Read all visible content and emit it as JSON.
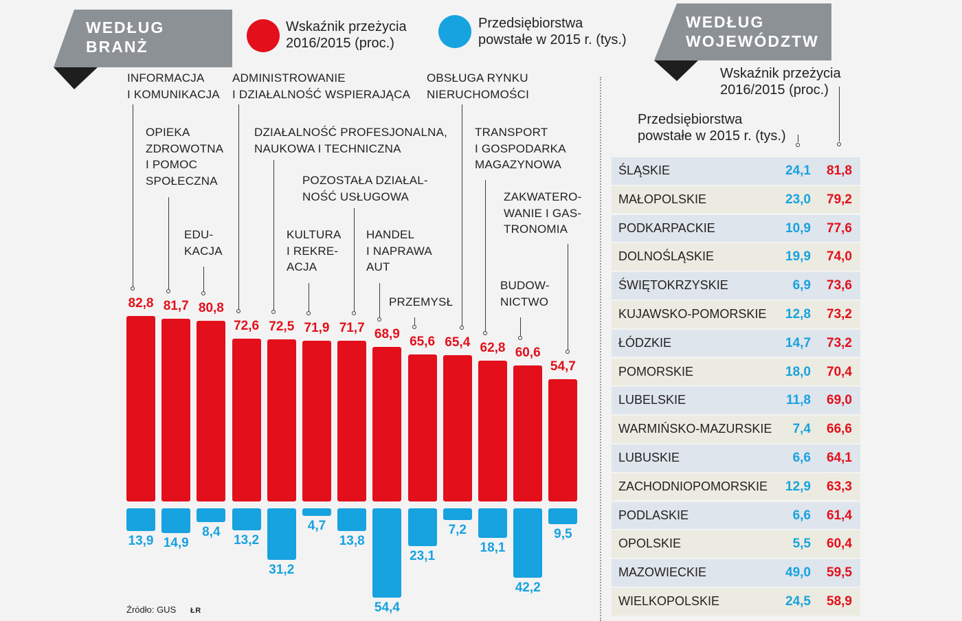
{
  "colors": {
    "red": "#e30f1b",
    "blue": "#17a2e0",
    "banner": "#8c9196",
    "banner_fold": "#1e1e1e",
    "row_a": "#dee5ec",
    "row_b": "#ecebe1",
    "background": "#f3f3f3"
  },
  "source": {
    "label": "Źródło: GUS",
    "author": "ŁR"
  },
  "chart_data": [
    {
      "type": "bar",
      "title": [
        "WEDŁUG",
        "BRANŻ"
      ],
      "categories": [
        [
          "INFORMACJA",
          "I KOMUNIKACJA"
        ],
        [
          "OPIEKA",
          "ZDROWOTNA",
          "I POMOC",
          "SPOŁECZNA"
        ],
        [
          "EDU-",
          "KACJA"
        ],
        [
          "ADMINISTROWANIE",
          "I DZIAŁALNOŚĆ WSPIERAJĄCA"
        ],
        [
          "DZIAŁALNOŚĆ PROFESJONALNA,",
          "NAUKOWA I TECHNICZNA"
        ],
        [
          "KULTURA",
          "I REKRE-",
          "ACJA"
        ],
        [
          "POZOSTAŁA DZIAŁAL-",
          "NOŚĆ USŁUGOWA"
        ],
        [
          "HANDEL",
          "I NAPRAWA",
          "AUT"
        ],
        [
          "PRZEMYSŁ"
        ],
        [
          "OBSŁUGA RYNKU",
          "NIERUCHOMOŚCI"
        ],
        [
          "TRANSPORT",
          "I GOSPODARKA",
          "MAGAZYNOWA"
        ],
        [
          "BUDOW-",
          "NICTWO"
        ],
        [
          "ZAKWATERO-",
          "WANIE I GAS-",
          "TRONOMIA"
        ]
      ],
      "series": [
        {
          "name": [
            "Wskaźnik przeżycia",
            "2016/2015 (proc.)"
          ],
          "color": "#e30f1b",
          "values": [
            82.8,
            81.7,
            80.8,
            72.6,
            72.5,
            71.9,
            71.7,
            68.9,
            65.6,
            65.4,
            62.8,
            60.6,
            54.7
          ],
          "value_labels": [
            "82,8",
            "81,7",
            "80,8",
            "72,6",
            "72,5",
            "71,9",
            "71,7",
            "68,9",
            "65,6",
            "65,4",
            "62,8",
            "60,6",
            "54,7"
          ]
        },
        {
          "name": [
            "Przedsiębiorstwa",
            "powstałe w 2015 r. (tys.)"
          ],
          "color": "#17a2e0",
          "values": [
            13.9,
            14.9,
            8.4,
            13.2,
            31.2,
            4.7,
            13.8,
            54.4,
            23.1,
            7.2,
            18.1,
            42.2,
            9.5
          ],
          "value_labels": [
            "13,9",
            "14,9",
            "8,4",
            "13,2",
            "31,2",
            "4,7",
            "13,8",
            "54,4",
            "23,1",
            "7,2",
            "18,1",
            "42,2",
            "9,5"
          ]
        }
      ]
    },
    {
      "type": "table",
      "title": [
        "WEDŁUG",
        "WOJEWÓDZTW"
      ],
      "column_headers": {
        "survival": [
          "Wskaźnik przeżycia",
          "2016/2015 (proc.)"
        ],
        "new_firms": [
          "Przedsiębiorstwa",
          "powstałe w 2015 r. (tys.)"
        ]
      },
      "rows": [
        {
          "region": "ŚLĄSKIE",
          "new_firms": "24,1",
          "survival": "81,8"
        },
        {
          "region": "MAŁOPOLSKIE",
          "new_firms": "23,0",
          "survival": "79,2"
        },
        {
          "region": "PODKARPACKIE",
          "new_firms": "10,9",
          "survival": "77,6"
        },
        {
          "region": "DOLNOŚLĄSKIE",
          "new_firms": "19,9",
          "survival": "74,0"
        },
        {
          "region": "ŚWIĘTOKRZYSKIE",
          "new_firms": "6,9",
          "survival": "73,6"
        },
        {
          "region": "KUJAWSKO-POMORSKIE",
          "new_firms": "12,8",
          "survival": "73,2"
        },
        {
          "region": "ŁÓDZKIE",
          "new_firms": "14,7",
          "survival": "73,2"
        },
        {
          "region": "POMORSKIE",
          "new_firms": "18,0",
          "survival": "70,4"
        },
        {
          "region": "LUBELSKIE",
          "new_firms": "11,8",
          "survival": "69,0"
        },
        {
          "region": "WARMIŃSKO-MAZURSKIE",
          "new_firms": "7,4",
          "survival": "66,6"
        },
        {
          "region": "LUBUSKIE",
          "new_firms": "6,6",
          "survival": "64,1"
        },
        {
          "region": "ZACHODNIOPOMORSKIE",
          "new_firms": "12,9",
          "survival": "63,3"
        },
        {
          "region": "PODLASKIE",
          "new_firms": "6,6",
          "survival": "61,4"
        },
        {
          "region": "OPOLSKIE",
          "new_firms": "5,5",
          "survival": "60,4"
        },
        {
          "region": "MAZOWIECKIE",
          "new_firms": "49,0",
          "survival": "59,5"
        },
        {
          "region": "WIELKOPOLSKIE",
          "new_firms": "24,5",
          "survival": "58,9"
        }
      ]
    }
  ]
}
